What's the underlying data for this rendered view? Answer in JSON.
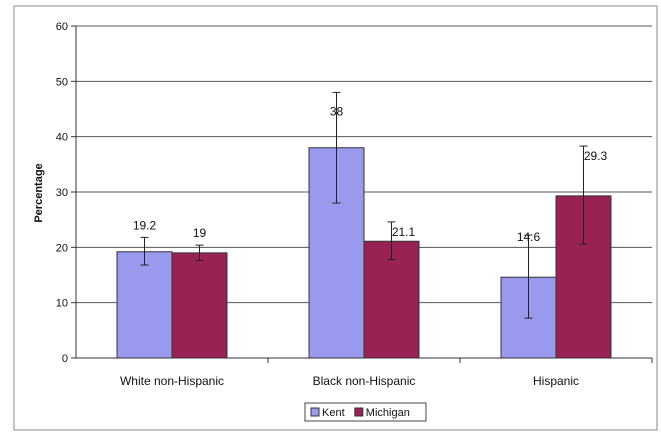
{
  "chart_data": {
    "type": "bar",
    "title": "",
    "xlabel": "",
    "ylabel": "Percentage",
    "ylim": [
      0,
      60
    ],
    "yticks": [
      0,
      10,
      20,
      30,
      40,
      50,
      60
    ],
    "grid": true,
    "legend_position": "bottom",
    "categories": [
      "White non-Hispanic",
      "Black non-Hispanic",
      "Hispanic"
    ],
    "series": [
      {
        "name": "Kent",
        "color": "#9999ee",
        "values": [
          19.2,
          38,
          14.6
        ],
        "labels": [
          "19.2",
          "38",
          "14.6"
        ],
        "error_low": [
          16.8,
          28,
          7.2
        ],
        "error_high": [
          21.8,
          48,
          22.2
        ]
      },
      {
        "name": "Michigan",
        "color": "#992255",
        "values": [
          19,
          21.1,
          29.3
        ],
        "labels": [
          "19",
          "21.1",
          "29.3"
        ],
        "error_low": [
          17.6,
          17.8,
          20.6
        ],
        "error_high": [
          20.4,
          24.6,
          38.3
        ]
      }
    ]
  }
}
